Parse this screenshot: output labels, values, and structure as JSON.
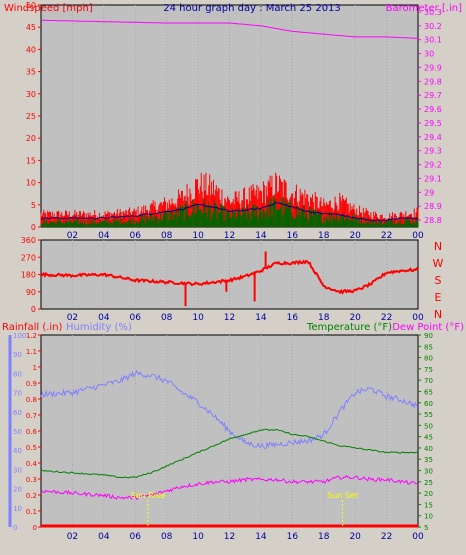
{
  "header": {
    "left_label": "Windspeed [mph]",
    "title": "24 hour graph day : March 25 2013",
    "right_label": "Barometer [.in]"
  },
  "colors": {
    "background": "#d4d0c8",
    "plot_bg": "#c0c0c0",
    "grid": "#a8a8a8",
    "wind": "#ff0000",
    "gust": "#ff0000",
    "avg_wind": "#000080",
    "wind_dark": "#006400",
    "barometer": "#ff00ff",
    "direction": "#ff0000",
    "rainfall": "#ff0000",
    "humidity": "#8080ff",
    "temperature": "#008000",
    "dewpoint": "#ff00ff",
    "title_blue": "#0000a0",
    "marker": "#ffff00"
  },
  "chart_data": [
    {
      "type": "line",
      "name": "wind-barometer",
      "y_left": {
        "label": "Windspeed [mph]",
        "range": [
          0,
          50
        ],
        "ticks": [
          0,
          5,
          10,
          15,
          20,
          25,
          30,
          35,
          40,
          45,
          50
        ]
      },
      "y_right": {
        "label": "Barometer [.in]",
        "range": [
          28.75,
          30.35
        ],
        "ticks": [
          "28.8",
          "28.9",
          "29",
          "29.1",
          "29.2",
          "29.3",
          "29.4",
          "29.5",
          "29.6",
          "29.7",
          "29.8",
          "29.9",
          "30",
          "30.1",
          "30.2",
          "30.3"
        ]
      },
      "x_ticks": [
        "02",
        "04",
        "06",
        "08",
        "10",
        "12",
        "14",
        "16",
        "18",
        "20",
        "22",
        "00"
      ],
      "barometer": {
        "x": [
          0,
          4,
          8,
          12,
          14,
          16,
          18,
          20,
          22,
          24
        ],
        "y": [
          30.24,
          30.23,
          30.22,
          30.22,
          30.2,
          30.16,
          30.14,
          30.12,
          30.12,
          30.11
        ]
      },
      "wind_gust_envelope": {
        "x": [
          0,
          2,
          4,
          6,
          8,
          9,
          10,
          11,
          12,
          13,
          14,
          15,
          16,
          17,
          18,
          19,
          20,
          21,
          22,
          23,
          24
        ],
        "y": [
          3,
          3,
          3,
          3.5,
          5.5,
          7,
          10,
          9,
          6,
          7,
          8,
          10,
          8,
          7,
          5,
          6,
          4,
          3,
          2.5,
          3,
          3.5
        ]
      },
      "wind_speed_envelope": {
        "x": [
          0,
          2,
          4,
          6,
          8,
          9,
          10,
          11,
          12,
          13,
          14,
          15,
          16,
          17,
          18,
          19,
          20,
          21,
          22,
          23,
          24
        ],
        "y": [
          1.5,
          1.5,
          1.5,
          2,
          3.5,
          4.5,
          6,
          5,
          3.5,
          4,
          5,
          6.5,
          5,
          4,
          3,
          3.5,
          2.5,
          1.5,
          1.5,
          2,
          2
        ]
      },
      "avg_wind": {
        "x": [
          0,
          2,
          4,
          6,
          8,
          9,
          10,
          11,
          12,
          13,
          14,
          15,
          16,
          17,
          18,
          19,
          20,
          21,
          22,
          23,
          24
        ],
        "y": [
          2,
          2,
          2,
          2.5,
          3.5,
          4,
          5,
          4.5,
          3.5,
          3.8,
          4.2,
          5.5,
          4.5,
          3.5,
          3,
          2.8,
          2,
          1.5,
          1.5,
          2,
          2
        ]
      }
    },
    {
      "type": "line",
      "name": "wind-direction",
      "y_left": {
        "range": [
          0,
          360
        ],
        "ticks": [
          0,
          90,
          180,
          270,
          360
        ]
      },
      "y_right_labels": [
        "N",
        "W",
        "S",
        "E",
        "N"
      ],
      "x_ticks": [
        "02",
        "04",
        "06",
        "08",
        "10",
        "12",
        "14",
        "16",
        "18",
        "20",
        "22",
        "00"
      ],
      "direction": {
        "x": [
          0,
          2,
          4,
          6,
          8,
          9,
          10,
          11,
          12,
          13,
          14,
          15,
          16,
          17,
          18,
          19,
          20,
          21,
          22,
          23,
          24
        ],
        "y": [
          180,
          175,
          180,
          150,
          140,
          135,
          130,
          140,
          150,
          170,
          200,
          240,
          240,
          250,
          120,
          90,
          95,
          130,
          190,
          200,
          205
        ]
      }
    },
    {
      "type": "line",
      "name": "rain-humidity-temperature",
      "header": {
        "rainfall_label": "Rainfall (.in)",
        "humidity_label": "Humidity (%)",
        "temperature_label": "Temperature (°F)",
        "dewpoint_label": "Dew Point (°F)"
      },
      "y_humidity": {
        "range": [
          0,
          100
        ],
        "ticks": [
          0,
          10,
          20,
          30,
          40,
          50,
          60,
          70,
          80,
          90,
          100
        ]
      },
      "y_rain": {
        "range": [
          0,
          1.2
        ],
        "ticks": [
          "0",
          "0.1",
          "0.2",
          "0.3",
          "0.4",
          "0.5",
          "0.6",
          "0.7",
          "0.8",
          "0.9",
          "1",
          "1.1",
          "1.2"
        ]
      },
      "y_temp": {
        "range": [
          5,
          90
        ],
        "ticks": [
          5,
          10,
          15,
          20,
          25,
          30,
          35,
          40,
          45,
          50,
          55,
          60,
          65,
          70,
          75,
          80,
          85,
          90
        ]
      },
      "x_ticks": [
        "02",
        "04",
        "06",
        "08",
        "10",
        "12",
        "14",
        "16",
        "18",
        "20",
        "22",
        "00"
      ],
      "humidity": {
        "x": [
          0,
          2,
          4,
          5,
          6,
          7,
          8,
          9,
          10,
          11,
          12,
          13,
          14,
          15,
          16,
          17,
          18,
          19,
          20,
          21,
          22,
          23,
          24
        ],
        "y": [
          69,
          70,
          74,
          76,
          80,
          79,
          76,
          70,
          65,
          58,
          50,
          44,
          42,
          43,
          44,
          45,
          48,
          60,
          70,
          72,
          68,
          66,
          63
        ]
      },
      "temperature": {
        "x": [
          0,
          2,
          4,
          5,
          6,
          7,
          8,
          9,
          10,
          11,
          12,
          13,
          14,
          15,
          16,
          17,
          18,
          19,
          20,
          21,
          22,
          23,
          24
        ],
        "y": [
          30,
          29,
          28,
          27,
          27,
          29,
          32,
          35,
          38,
          41,
          44,
          46,
          48,
          48,
          46,
          45,
          43,
          41,
          40,
          39,
          38,
          38,
          38
        ]
      },
      "dewpoint": {
        "x": [
          0,
          2,
          4,
          5,
          6,
          7,
          8,
          9,
          10,
          11,
          12,
          13,
          14,
          15,
          16,
          17,
          18,
          19,
          20,
          21,
          22,
          23,
          24
        ],
        "y": [
          21,
          20,
          19,
          18,
          18,
          19,
          21,
          23,
          24,
          25,
          25,
          26,
          26,
          26,
          25,
          25,
          25,
          27,
          27,
          26,
          26,
          25,
          24
        ]
      },
      "rainfall": {
        "x": [
          0,
          24
        ],
        "y": [
          0,
          0
        ]
      },
      "annotations": [
        {
          "label": "Sun Rise",
          "x": 6.8
        },
        {
          "label": "Sun Set",
          "x": 19.2
        }
      ]
    }
  ]
}
